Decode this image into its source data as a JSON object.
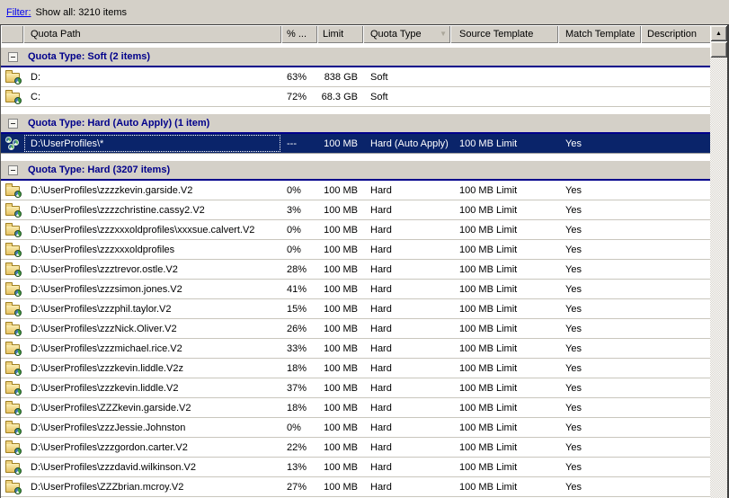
{
  "filter_bar": {
    "link_label": "Filter:",
    "summary": "Show all: 3210 items"
  },
  "icons": {
    "sort_desc": "▼",
    "scroll_up": "▲"
  },
  "colors": {
    "selection_bg": "#0a246a",
    "selection_text": "#ffffff",
    "group_header_text": "#00008b",
    "chrome": "#d4d0c8",
    "list_bg": "#ffffff",
    "filter_link": "#0000ee"
  },
  "columns": [
    {
      "id": "icon",
      "label": ""
    },
    {
      "id": "path",
      "label": "Quota Path"
    },
    {
      "id": "pct",
      "label": "% ..."
    },
    {
      "id": "limit",
      "label": "Limit"
    },
    {
      "id": "type",
      "label": "Quota Type",
      "sort": "desc"
    },
    {
      "id": "source",
      "label": "Source Template"
    },
    {
      "id": "match",
      "label": "Match Template"
    },
    {
      "id": "desc",
      "label": "Description"
    }
  ],
  "groups": [
    {
      "label": "Quota Type: Soft (2 items)",
      "rows": [
        {
          "icon": "folder-quota",
          "path": "D:",
          "percent": "63%",
          "limit": "838 GB",
          "type": "Soft",
          "source": "",
          "match": "",
          "description": "",
          "selected": false
        },
        {
          "icon": "folder-quota",
          "path": "C:",
          "percent": "72%",
          "limit": "68.3 GB",
          "type": "Soft",
          "source": "",
          "match": "",
          "description": "",
          "selected": false
        }
      ]
    },
    {
      "label": "Quota Type: Hard (Auto Apply) (1 item)",
      "rows": [
        {
          "icon": "auto-apply-quota",
          "path": "D:\\UserProfiles\\*",
          "percent": "---",
          "limit": "100 MB",
          "type": "Hard (Auto Apply)",
          "source": "100 MB Limit",
          "match": "Yes",
          "description": "",
          "selected": true
        }
      ]
    },
    {
      "label": "Quota Type: Hard (3207 items)",
      "rows": [
        {
          "icon": "folder-quota",
          "path": "D:\\UserProfiles\\zzzzkevin.garside.V2",
          "percent": "0%",
          "limit": "100 MB",
          "type": "Hard",
          "source": "100 MB Limit",
          "match": "Yes",
          "description": "",
          "selected": false
        },
        {
          "icon": "folder-quota",
          "path": "D:\\UserProfiles\\zzzzchristine.cassy2.V2",
          "percent": "3%",
          "limit": "100 MB",
          "type": "Hard",
          "source": "100 MB Limit",
          "match": "Yes",
          "description": "",
          "selected": false
        },
        {
          "icon": "folder-quota",
          "path": "D:\\UserProfiles\\zzzxxxoldprofiles\\xxxsue.calvert.V2",
          "percent": "0%",
          "limit": "100 MB",
          "type": "Hard",
          "source": "100 MB Limit",
          "match": "Yes",
          "description": "",
          "selected": false
        },
        {
          "icon": "folder-quota",
          "path": "D:\\UserProfiles\\zzzxxxoldprofiles",
          "percent": "0%",
          "limit": "100 MB",
          "type": "Hard",
          "source": "100 MB Limit",
          "match": "Yes",
          "description": "",
          "selected": false
        },
        {
          "icon": "folder-quota",
          "path": "D:\\UserProfiles\\zzztrevor.ostle.V2",
          "percent": "28%",
          "limit": "100 MB",
          "type": "Hard",
          "source": "100 MB Limit",
          "match": "Yes",
          "description": "",
          "selected": false
        },
        {
          "icon": "folder-quota",
          "path": "D:\\UserProfiles\\zzzsimon.jones.V2",
          "percent": "41%",
          "limit": "100 MB",
          "type": "Hard",
          "source": "100 MB Limit",
          "match": "Yes",
          "description": "",
          "selected": false
        },
        {
          "icon": "folder-quota",
          "path": "D:\\UserProfiles\\zzzphil.taylor.V2",
          "percent": "15%",
          "limit": "100 MB",
          "type": "Hard",
          "source": "100 MB Limit",
          "match": "Yes",
          "description": "",
          "selected": false
        },
        {
          "icon": "folder-quota",
          "path": "D:\\UserProfiles\\zzzNick.Oliver.V2",
          "percent": "26%",
          "limit": "100 MB",
          "type": "Hard",
          "source": "100 MB Limit",
          "match": "Yes",
          "description": "",
          "selected": false
        },
        {
          "icon": "folder-quota",
          "path": "D:\\UserProfiles\\zzzmichael.rice.V2",
          "percent": "33%",
          "limit": "100 MB",
          "type": "Hard",
          "source": "100 MB Limit",
          "match": "Yes",
          "description": "",
          "selected": false
        },
        {
          "icon": "folder-quota",
          "path": "D:\\UserProfiles\\zzzkevin.liddle.V2z",
          "percent": "18%",
          "limit": "100 MB",
          "type": "Hard",
          "source": "100 MB Limit",
          "match": "Yes",
          "description": "",
          "selected": false
        },
        {
          "icon": "folder-quota",
          "path": "D:\\UserProfiles\\zzzkevin.liddle.V2",
          "percent": "37%",
          "limit": "100 MB",
          "type": "Hard",
          "source": "100 MB Limit",
          "match": "Yes",
          "description": "",
          "selected": false
        },
        {
          "icon": "folder-quota",
          "path": "D:\\UserProfiles\\ZZZkevin.garside.V2",
          "percent": "18%",
          "limit": "100 MB",
          "type": "Hard",
          "source": "100 MB Limit",
          "match": "Yes",
          "description": "",
          "selected": false
        },
        {
          "icon": "folder-quota",
          "path": "D:\\UserProfiles\\zzzJessie.Johnston",
          "percent": "0%",
          "limit": "100 MB",
          "type": "Hard",
          "source": "100 MB Limit",
          "match": "Yes",
          "description": "",
          "selected": false
        },
        {
          "icon": "folder-quota",
          "path": "D:\\UserProfiles\\zzzgordon.carter.V2",
          "percent": "22%",
          "limit": "100 MB",
          "type": "Hard",
          "source": "100 MB Limit",
          "match": "Yes",
          "description": "",
          "selected": false
        },
        {
          "icon": "folder-quota",
          "path": "D:\\UserProfiles\\zzzdavid.wilkinson.V2",
          "percent": "13%",
          "limit": "100 MB",
          "type": "Hard",
          "source": "100 MB Limit",
          "match": "Yes",
          "description": "",
          "selected": false
        },
        {
          "icon": "folder-quota",
          "path": "D:\\UserProfiles\\ZZZbrian.mcroy.V2",
          "percent": "27%",
          "limit": "100 MB",
          "type": "Hard",
          "source": "100 MB Limit",
          "match": "Yes",
          "description": "",
          "selected": false
        }
      ]
    }
  ]
}
